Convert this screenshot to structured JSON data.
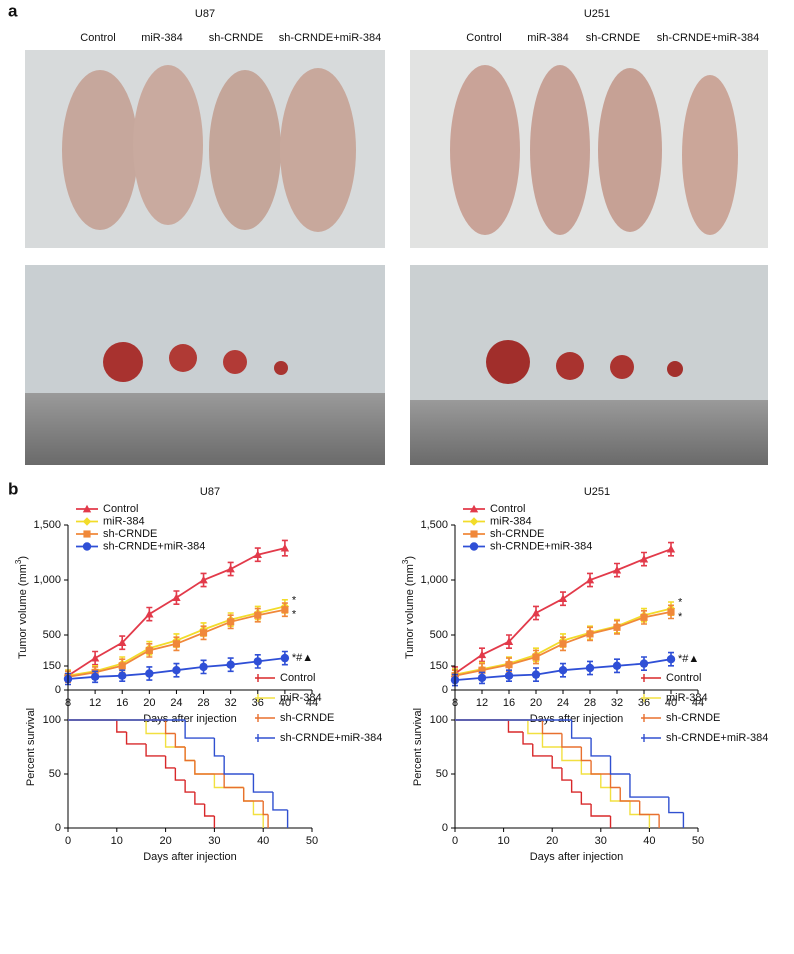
{
  "panel_labels": [
    "a",
    "b"
  ],
  "photos": [
    {
      "title": "U87",
      "groups": [
        "Control",
        "miR-384",
        "sh-CRNDE",
        "sh-CRNDE+miR-384"
      ]
    },
    {
      "title": "U251",
      "groups": [
        "Control",
        "miR-384",
        "sh-CRNDE",
        "sh-CRNDE+miR-384"
      ]
    }
  ],
  "chart_data": [
    {
      "type": "line",
      "title": "U87",
      "x_label": "Days after injection",
      "y_label": [
        "Tumor volume (mm",
        "3",
        ")"
      ],
      "x": [
        8,
        12,
        16,
        20,
        24,
        28,
        32,
        36,
        40
      ],
      "xlim": [
        8,
        44
      ],
      "xticks": [
        8,
        12,
        16,
        20,
        24,
        28,
        32,
        36,
        40,
        44
      ],
      "ylim": [
        0,
        1500
      ],
      "yticks": [
        0,
        500,
        {
          "value": 1000,
          "label": "1,000"
        },
        {
          "value": 1500,
          "label": "1,500"
        }
      ],
      "legend": "upper left",
      "series": [
        {
          "name": "Control",
          "color": "#e23a4a",
          "marker": "triangle",
          "values": [
            130,
            290,
            430,
            690,
            840,
            1000,
            1100,
            1230,
            1290
          ],
          "errors": [
            50,
            60,
            60,
            60,
            60,
            60,
            60,
            60,
            70
          ]
        },
        {
          "name": "miR-384",
          "color": "#f2dc2a",
          "marker": "diamond",
          "values": [
            130,
            170,
            240,
            380,
            450,
            550,
            640,
            700,
            760
          ],
          "errors": [
            50,
            50,
            60,
            60,
            60,
            60,
            60,
            60,
            60
          ],
          "end_label": "*"
        },
        {
          "name": "sh-CRNDE",
          "color": "#f0883a",
          "marker": "square",
          "values": [
            120,
            160,
            220,
            360,
            420,
            520,
            620,
            680,
            730
          ],
          "errors": [
            50,
            50,
            60,
            60,
            60,
            60,
            60,
            60,
            60
          ],
          "end_label": "*"
        },
        {
          "name": "sh-CRNDE+miR-384",
          "color": "#2f4fd6",
          "marker": "circle",
          "values": [
            100,
            120,
            130,
            150,
            180,
            210,
            230,
            260,
            290
          ],
          "errors": [
            50,
            50,
            50,
            60,
            60,
            60,
            60,
            60,
            60
          ],
          "end_label": "*#▲"
        }
      ]
    },
    {
      "type": "line",
      "title": "U251",
      "x_label": "Days after injection",
      "y_label": [
        "Tumor volume (mm",
        "3",
        ")"
      ],
      "x": [
        8,
        12,
        16,
        20,
        24,
        28,
        32,
        36,
        40
      ],
      "xlim": [
        8,
        44
      ],
      "xticks": [
        8,
        12,
        16,
        20,
        24,
        28,
        32,
        36,
        40,
        44
      ],
      "ylim": [
        0,
        1500
      ],
      "yticks": [
        0,
        500,
        {
          "value": 1000,
          "label": "1,000"
        },
        {
          "value": 1500,
          "label": "1,500"
        }
      ],
      "legend": "upper left",
      "series": [
        {
          "name": "Control",
          "color": "#e23a4a",
          "marker": "triangle",
          "values": [
            150,
            320,
            440,
            700,
            830,
            1000,
            1090,
            1190,
            1280
          ],
          "errors": [
            60,
            60,
            60,
            60,
            60,
            60,
            60,
            60,
            60
          ]
        },
        {
          "name": "miR-384",
          "color": "#f2dc2a",
          "marker": "diamond",
          "values": [
            140,
            190,
            240,
            320,
            450,
            520,
            580,
            680,
            740
          ],
          "errors": [
            50,
            60,
            60,
            60,
            60,
            60,
            60,
            60,
            60
          ],
          "end_label": "*"
        },
        {
          "name": "sh-CRNDE",
          "color": "#f0883a",
          "marker": "square",
          "values": [
            130,
            180,
            230,
            300,
            420,
            510,
            570,
            660,
            710
          ],
          "errors": [
            50,
            60,
            60,
            60,
            60,
            60,
            60,
            60,
            60
          ],
          "end_label": "*"
        },
        {
          "name": "sh-CRNDE+miR-384",
          "color": "#2f4fd6",
          "marker": "circle",
          "values": [
            90,
            110,
            130,
            140,
            180,
            200,
            220,
            240,
            280
          ],
          "errors": [
            50,
            50,
            50,
            60,
            60,
            60,
            60,
            60,
            60
          ],
          "end_label": "*#▲"
        }
      ]
    },
    {
      "type": "step",
      "x_label": "Days after injection",
      "y_label": "Percent survival",
      "xlim": [
        0,
        50
      ],
      "xticks": [
        0,
        10,
        20,
        30,
        40,
        50
      ],
      "ylim": [
        0,
        150
      ],
      "yticks": [
        0,
        50,
        100,
        150
      ],
      "legend": "upper right",
      "series": [
        {
          "name": "Control",
          "color": "#d8282a",
          "x": [
            0,
            10,
            12,
            16,
            20,
            22,
            24,
            26,
            28,
            30
          ],
          "values": [
            100,
            88.9,
            77.8,
            66.7,
            55.6,
            44.4,
            33.3,
            22.2,
            11.1,
            0
          ]
        },
        {
          "name": "miR-384",
          "color": "#f2e040",
          "x": [
            0,
            16,
            20,
            24,
            26,
            30,
            36,
            38,
            40
          ],
          "values": [
            100,
            87.5,
            75,
            62.5,
            50,
            37.5,
            25,
            12.5,
            0
          ]
        },
        {
          "name": "sh-CRNDE",
          "color": "#e8702e",
          "x": [
            0,
            20,
            22,
            24,
            26,
            32,
            36,
            40,
            41
          ],
          "values": [
            100,
            87.5,
            75,
            62.5,
            50,
            37.5,
            25,
            12.5,
            0
          ]
        },
        {
          "name": "sh-CRNDE+miR-384",
          "color": "#3050d0",
          "x": [
            0,
            24,
            30,
            32,
            38,
            42,
            45
          ],
          "values": [
            100,
            83.3,
            66.7,
            50,
            33.3,
            16.7,
            0
          ]
        }
      ]
    },
    {
      "type": "step",
      "x_label": "Days after injection",
      "y_label": "Percent survival",
      "xlim": [
        0,
        50
      ],
      "xticks": [
        0,
        10,
        20,
        30,
        40,
        50
      ],
      "ylim": [
        0,
        150
      ],
      "yticks": [
        0,
        50,
        100,
        150
      ],
      "legend": "upper right",
      "series": [
        {
          "name": "Control",
          "color": "#d8282a",
          "x": [
            0,
            11,
            14,
            16,
            20,
            22,
            24,
            26,
            28,
            32
          ],
          "values": [
            100,
            88.9,
            77.8,
            66.7,
            55.6,
            44.4,
            33.3,
            22.2,
            11.1,
            0
          ]
        },
        {
          "name": "miR-384",
          "color": "#f2e040",
          "x": [
            0,
            15,
            18,
            22,
            26,
            30,
            32,
            36,
            40
          ],
          "values": [
            100,
            87.5,
            75,
            62.5,
            50,
            37.5,
            25,
            12.5,
            0
          ]
        },
        {
          "name": "sh-CRNDE",
          "color": "#e8702e",
          "x": [
            0,
            18,
            22,
            26,
            28,
            32,
            34,
            38,
            42
          ],
          "values": [
            100,
            87.5,
            75,
            62.5,
            50,
            37.5,
            25,
            12.5,
            0
          ]
        },
        {
          "name": "sh-CRNDE+miR-384",
          "color": "#3050d0",
          "x": [
            0,
            24,
            28,
            32,
            36,
            44,
            47
          ],
          "values": [
            100,
            83.3,
            66.7,
            50,
            28.6,
            14.3,
            0
          ]
        }
      ]
    }
  ]
}
